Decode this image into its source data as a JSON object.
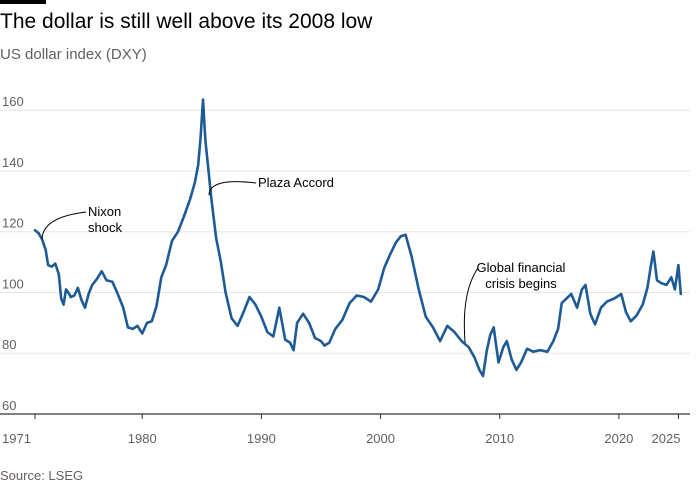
{
  "header": {
    "title": "The dollar is still well above its 2008 low",
    "subtitle": "US dollar index (DXY)"
  },
  "footer": {
    "source": "Source: LSEG"
  },
  "colors": {
    "line": "#1e5a96",
    "grid": "#e8e6e2",
    "axis": "#333333",
    "text_muted": "#66605c"
  },
  "chart_data": {
    "type": "line",
    "title": "The dollar is still well above its 2008 low",
    "subtitle": "US dollar index (DXY)",
    "xlabel": "",
    "ylabel": "",
    "xlim": [
      1971,
      2025.3
    ],
    "ylim": [
      60,
      165
    ],
    "x_ticks": [
      1971,
      1980,
      1990,
      2000,
      2010,
      2020,
      2025
    ],
    "x_tick_labels": [
      "1971",
      "1980",
      "1990",
      "2000",
      "2010",
      "2020",
      "2025"
    ],
    "y_ticks": [
      60,
      80,
      100,
      120,
      140,
      160
    ],
    "y_tick_labels": [
      "60",
      "80",
      "100",
      "120",
      "140",
      "160"
    ],
    "grid": "horizontal",
    "series": [
      {
        "name": "",
        "x": [
          1971.0,
          1971.3,
          1971.6,
          1971.9,
          1972.1,
          1972.4,
          1972.7,
          1973.0,
          1973.2,
          1973.4,
          1973.6,
          1973.8,
          1974.0,
          1974.3,
          1974.6,
          1974.9,
          1975.2,
          1975.5,
          1975.8,
          1976.2,
          1976.6,
          1977.0,
          1977.5,
          1978.0,
          1978.4,
          1978.8,
          1979.2,
          1979.6,
          1980.0,
          1980.4,
          1980.8,
          1981.2,
          1981.6,
          1982.0,
          1982.5,
          1983.0,
          1983.5,
          1984.0,
          1984.4,
          1984.7,
          1984.9,
          1985.1,
          1985.3,
          1985.6,
          1985.8,
          1986.2,
          1986.6,
          1987.0,
          1987.5,
          1988.0,
          1988.5,
          1989.0,
          1989.5,
          1990.0,
          1990.5,
          1991.0,
          1991.5,
          1992.0,
          1992.4,
          1992.7,
          1993.0,
          1993.5,
          1994.0,
          1994.5,
          1995.0,
          1995.3,
          1995.7,
          1996.2,
          1996.8,
          1997.4,
          1998.0,
          1998.6,
          1999.2,
          1999.8,
          2000.3,
          2000.8,
          2001.3,
          2001.7,
          2002.1,
          2002.6,
          2003.2,
          2003.8,
          2004.4,
          2005.0,
          2005.6,
          2006.2,
          2006.8,
          2007.4,
          2007.9,
          2008.3,
          2008.6,
          2008.9,
          2009.2,
          2009.5,
          2009.9,
          2010.3,
          2010.6,
          2011.0,
          2011.4,
          2011.8,
          2012.3,
          2012.8,
          2013.4,
          2014.0,
          2014.5,
          2014.9,
          2015.2,
          2015.6,
          2016.0,
          2016.5,
          2016.9,
          2017.2,
          2017.6,
          2018.0,
          2018.5,
          2019.0,
          2019.6,
          2020.2,
          2020.6,
          2021.0,
          2021.5,
          2022.0,
          2022.4,
          2022.7,
          2022.9,
          2023.2,
          2023.6,
          2024.0,
          2024.4,
          2024.7,
          2025.0,
          2025.2
        ],
        "values": [
          120.5,
          119.5,
          117.5,
          114.0,
          109.0,
          108.5,
          109.5,
          106.0,
          98.0,
          96.0,
          101.0,
          100.0,
          98.5,
          99.0,
          101.5,
          97.5,
          95.0,
          99.5,
          102.5,
          104.5,
          107.0,
          104.0,
          103.5,
          99.0,
          95.0,
          88.5,
          88.0,
          89.0,
          86.5,
          90.0,
          90.5,
          95.5,
          105.0,
          109.0,
          117.0,
          120.0,
          125.0,
          130.5,
          136.0,
          142.0,
          151.0,
          163.5,
          150.0,
          138.5,
          131.0,
          118.0,
          110.0,
          100.0,
          91.5,
          89.0,
          93.5,
          98.5,
          96.0,
          92.0,
          87.0,
          85.5,
          95.0,
          84.5,
          83.5,
          81.0,
          90.0,
          93.0,
          90.0,
          85.0,
          84.0,
          82.5,
          83.5,
          88.0,
          91.0,
          96.5,
          99.0,
          98.5,
          97.0,
          101.0,
          108.0,
          112.5,
          116.5,
          118.5,
          119.0,
          112.0,
          101.0,
          92.0,
          88.5,
          84.0,
          89.0,
          87.0,
          84.0,
          82.0,
          78.5,
          74.5,
          72.5,
          80.5,
          86.0,
          88.5,
          77.0,
          82.0,
          84.0,
          78.0,
          74.5,
          77.0,
          81.5,
          80.5,
          81.0,
          80.5,
          84.0,
          88.0,
          96.5,
          98.0,
          99.5,
          95.0,
          101.0,
          102.5,
          93.0,
          89.5,
          95.0,
          97.0,
          98.0,
          99.5,
          93.5,
          90.5,
          92.5,
          96.0,
          101.5,
          109.0,
          113.5,
          104.0,
          103.0,
          102.5,
          105.0,
          101.0,
          109.0,
          99.5
        ]
      }
    ],
    "annotations": [
      {
        "text_lines": [
          "Nixon",
          "shock"
        ],
        "x": 1971.6,
        "y": 117.5
      },
      {
        "text_lines": [
          "Plaza Accord"
        ],
        "x": 1985.6,
        "y": 132.0
      },
      {
        "text_lines": [
          "Global financial",
          "crisis begins"
        ],
        "x": 2007.1,
        "y": 83.5
      }
    ]
  }
}
